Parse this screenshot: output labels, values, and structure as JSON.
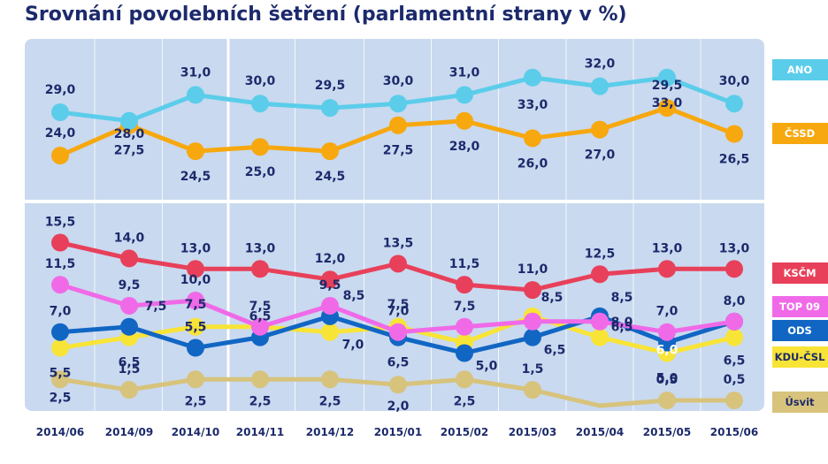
{
  "title": "Srovnání povolebních šetření (parlamentní strany v %)",
  "chart_data": {
    "type": "line",
    "title": "Srovnání povolebních šetření (parlamentní strany v %)",
    "x": [
      "2014/06",
      "2014/09",
      "2014/10",
      "2014/11",
      "2014/12",
      "2015/01",
      "2015/02",
      "2015/03",
      "2015/04",
      "2015/05",
      "2015/06"
    ],
    "series": [
      {
        "name": "ANO",
        "color": "#5bcdea",
        "values": [
          29.0,
          28.0,
          31.0,
          30.0,
          29.5,
          30.0,
          31.0,
          33.0,
          32.0,
          33.0,
          30.0
        ],
        "labels": [
          "29,0",
          "28,0",
          "31,0",
          "30,0",
          "29,5",
          "30,0",
          "31,0",
          "33,0",
          "32,0",
          "33,0",
          "30,0"
        ]
      },
      {
        "name": "ČSSD",
        "color": "#f7a80f",
        "values": [
          24.0,
          27.5,
          24.5,
          25.0,
          24.5,
          27.5,
          28.0,
          26.0,
          27.0,
          29.5,
          26.5
        ],
        "labels": [
          "24,0",
          "27,5",
          "24,5",
          "25,0",
          "24,5",
          "27,5",
          "28,0",
          "26,0",
          "27,0",
          "29,5",
          "26,5"
        ]
      },
      {
        "name": "KSČM",
        "color": "#e8405a",
        "values": [
          15.5,
          14.0,
          13.0,
          13.0,
          12.0,
          13.5,
          11.5,
          11.0,
          12.5,
          13.0,
          13.0
        ],
        "labels": [
          "15,5",
          "14,0",
          "13,0",
          "13,0",
          "12,0",
          "13,5",
          "11,5",
          "11,0",
          "12,5",
          "13,0",
          "13,0"
        ]
      },
      {
        "name": "TOP 09",
        "color": "#f06ae8",
        "values": [
          11.5,
          9.5,
          10.0,
          7.5,
          9.5,
          7.0,
          7.5,
          8.0,
          8.0,
          7.0,
          8.0
        ],
        "labels": [
          "11,5",
          "9,5",
          "10,0",
          "7,5",
          "9,5",
          "7,0",
          "7,5",
          "",
          "8,0",
          "7,0",
          "8,0"
        ]
      },
      {
        "name": "ODS",
        "color": "#1166c4",
        "values": [
          7.0,
          7.5,
          5.5,
          6.5,
          8.5,
          6.5,
          5.0,
          6.5,
          8.5,
          6.0,
          8.0
        ],
        "labels": [
          "7,0",
          "7,5",
          "5,5",
          "6,5",
          "8,5",
          "6,5",
          "5,0",
          "6,5",
          "8,5",
          "6,0",
          ""
        ]
      },
      {
        "name": "KDU-ČSL",
        "color": "#f8e436",
        "values": [
          5.5,
          6.5,
          7.5,
          7.5,
          7.0,
          7.5,
          6.0,
          8.5,
          6.5,
          5.0,
          6.5
        ],
        "labels": [
          "5,5",
          "6,5",
          "7,5",
          "",
          "7,0",
          "7,5",
          "",
          "8,5",
          "6,5",
          "5,0",
          "6,5"
        ]
      },
      {
        "name": "Úsvit",
        "color": "#d7c37b",
        "values": [
          2.5,
          1.5,
          2.5,
          2.5,
          2.5,
          2.0,
          2.5,
          1.5,
          0.0,
          0.5,
          0.5
        ],
        "labels": [
          "2,5",
          "1,5",
          "2,5",
          "2,5",
          "2,5",
          "2,0",
          "2,5",
          "1,5",
          "",
          "0,5",
          "0,5"
        ]
      }
    ],
    "grid": true,
    "legend": "right"
  }
}
